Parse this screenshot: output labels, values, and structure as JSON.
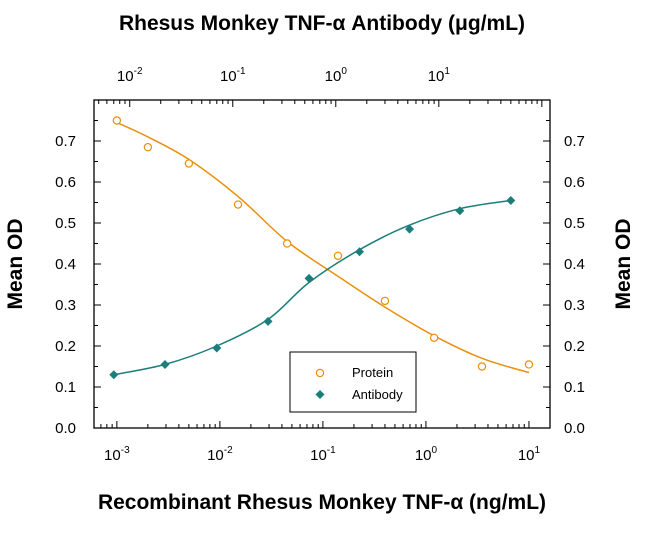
{
  "chart_data": {
    "type": "scatter",
    "title_top": "Rhesus Monkey TNF-α Antibody (μg/mL)",
    "xlabel_bottom": "Recombinant Rhesus Monkey TNF-α (ng/mL)",
    "ylabel_left": "Mean OD",
    "ylabel_right": "Mean OD",
    "x_bottom": {
      "scale": "log",
      "range": [
        0.0006,
        16
      ],
      "ticks": [
        0.001,
        0.01,
        0.1,
        1,
        10
      ],
      "tick_labels": [
        "10-3",
        "10-2",
        "10-1",
        "100",
        "101"
      ]
    },
    "x_top": {
      "scale": "log",
      "range": [
        0.0045,
        120
      ],
      "ticks": [
        0.01,
        0.1,
        1,
        10
      ],
      "tick_labels": [
        "10-2",
        "10-1",
        "100",
        "101"
      ]
    },
    "y": {
      "range": [
        0,
        0.8
      ],
      "ticks": [
        0.0,
        0.1,
        0.2,
        0.3,
        0.4,
        0.5,
        0.6,
        0.7
      ],
      "tick_labels": [
        "0.0",
        "0.1",
        "0.2",
        "0.3",
        "0.4",
        "0.5",
        "0.6",
        "0.7"
      ]
    },
    "grid": false,
    "legend_position": "bottom-center",
    "series": [
      {
        "name": "Protein",
        "axis": "bottom",
        "marker": "open-circle",
        "color": "#E8900C",
        "x": [
          0.001,
          0.002,
          0.005,
          0.015,
          0.045,
          0.14,
          0.4,
          1.2,
          3.5,
          10
        ],
        "y": [
          0.75,
          0.685,
          0.645,
          0.545,
          0.45,
          0.42,
          0.31,
          0.22,
          0.15,
          0.155
        ],
        "fit_y": [
          0.745,
          0.71,
          0.655,
          0.565,
          0.455,
          0.37,
          0.295,
          0.225,
          0.17,
          0.135
        ]
      },
      {
        "name": "Antibody",
        "axis": "top",
        "marker": "filled-diamond",
        "color": "#1B7E7A",
        "x": [
          0.007,
          0.022,
          0.07,
          0.22,
          0.55,
          1.7,
          5.2,
          16,
          50
        ],
        "y": [
          0.13,
          0.155,
          0.195,
          0.26,
          0.365,
          0.43,
          0.485,
          0.53,
          0.555
        ],
        "fit_y": [
          0.13,
          0.155,
          0.2,
          0.265,
          0.355,
          0.435,
          0.495,
          0.535,
          0.555
        ]
      }
    ]
  }
}
